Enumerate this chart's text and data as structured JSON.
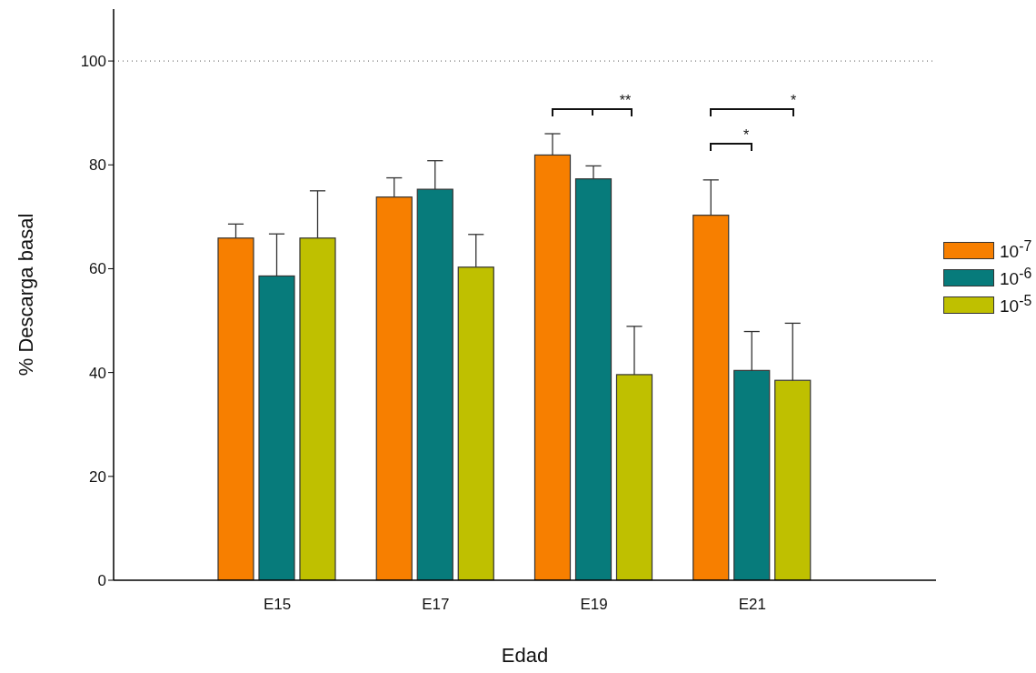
{
  "chart_data": {
    "type": "bar",
    "xlabel": "Edad",
    "ylabel": "% Descarga basal",
    "categories": [
      "E15",
      "E17",
      "E19",
      "E21"
    ],
    "series": [
      {
        "name": "10$^{-7}$",
        "color": "#f77f00",
        "values": [
          65.9,
          73.8,
          81.9,
          70.3
        ],
        "errors": [
          [
            65.9,
            68.6
          ],
          [
            73.8,
            77.5
          ],
          [
            81.9,
            86.0
          ],
          [
            70.3,
            77.1
          ]
        ]
      },
      {
        "name": "10$^{-6}$",
        "color": "#077b7b",
        "values": [
          58.6,
          75.3,
          77.3,
          40.4
        ],
        "errors": [
          [
            58.6,
            66.7
          ],
          [
            75.3,
            80.8
          ],
          [
            77.3,
            79.8
          ],
          [
            40.4,
            47.9
          ]
        ]
      },
      {
        "name": "10$^{-5}$",
        "color": "#bfc000",
        "values": [
          65.9,
          60.3,
          39.6,
          38.5
        ],
        "errors": [
          [
            65.9,
            75.0
          ],
          [
            60.3,
            66.6
          ],
          [
            39.6,
            48.9
          ],
          [
            38.5,
            49.5
          ]
        ]
      }
    ],
    "ylim": [
      0,
      110
    ],
    "yticks": [
      0,
      20,
      40,
      60,
      80,
      100
    ],
    "grid": false,
    "legend": "right",
    "ref_lines": [
      {
        "axis": "y",
        "value": 100,
        "line_style": "dotted",
        "color": "#555555"
      }
    ],
    "annotations": [
      "**",
      "*",
      "*"
    ]
  }
}
